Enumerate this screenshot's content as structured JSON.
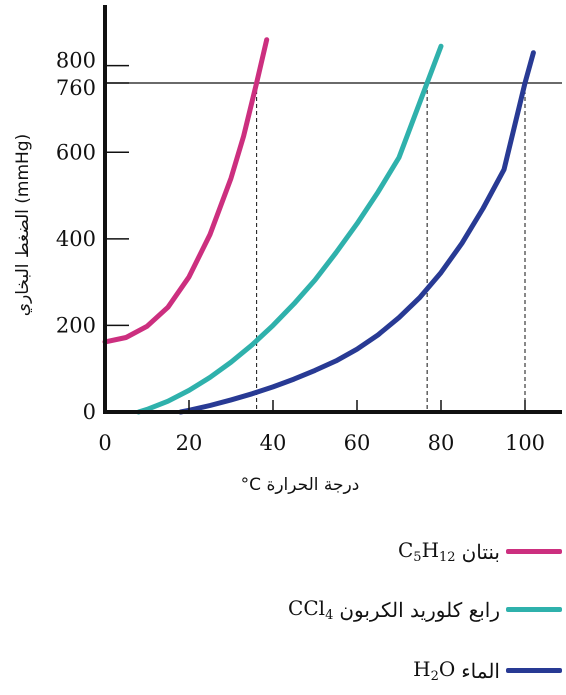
{
  "chart_data": {
    "type": "line",
    "title": "",
    "xlabel": "°C درجة الحرارة",
    "ylabel": "الضغط البخاري (mmHg)",
    "xlim": [
      0,
      105
    ],
    "ylim": [
      0,
      880
    ],
    "x_ticks": [
      0,
      20,
      40,
      60,
      80,
      100
    ],
    "y_ticks": [
      0,
      200,
      400,
      600,
      760,
      800
    ],
    "grid": false,
    "legend_placement": "bottom-right",
    "reference_line": {
      "y": 760
    },
    "series": [
      {
        "name": "بنتان C5H12",
        "color": "#cc2f7f",
        "x": [
          0,
          5,
          10,
          15,
          20,
          25,
          30,
          33,
          36.1,
          38.5
        ],
        "y": [
          162,
          172,
          198,
          242,
          312,
          410,
          540,
          637,
          760,
          860
        ],
        "boiling_point": 36.1
      },
      {
        "name": "رابع كلوريد الكربون CCl4",
        "color": "#2fb1ac",
        "x": [
          8,
          10,
          15,
          20,
          25,
          30,
          35,
          40,
          45,
          50,
          55,
          60,
          65,
          70,
          76.7,
          80
        ],
        "y": [
          0,
          6,
          25,
          50,
          80,
          115,
          155,
          200,
          250,
          305,
          368,
          435,
          508,
          588,
          760,
          845
        ],
        "boiling_point": 76.7
      },
      {
        "name": "الماء H2O",
        "color": "#283a94",
        "x": [
          18,
          20,
          25,
          30,
          35,
          40,
          45,
          50,
          55,
          60,
          65,
          70,
          75,
          80,
          85,
          90,
          95,
          100,
          102
        ],
        "y": [
          0,
          4,
          15,
          28,
          42,
          58,
          76,
          96,
          118,
          145,
          178,
          218,
          265,
          322,
          390,
          470,
          560,
          760,
          830
        ],
        "boiling_point": 100
      }
    ]
  },
  "legend": [
    {
      "label": "بنتان",
      "formula_main": "C",
      "formula_sub1": "5",
      "formula_mid": "H",
      "formula_sub2": "12",
      "formula_end": "",
      "color": "#cc2f7f"
    },
    {
      "label": "رابع كلوريد الكربون",
      "formula_main": "CCl",
      "formula_sub1": "4",
      "formula_mid": "",
      "formula_sub2": "",
      "formula_end": "",
      "color": "#2fb1ac"
    },
    {
      "label": "الماء",
      "formula_main": "H",
      "formula_sub1": "2",
      "formula_mid": "O",
      "formula_sub2": "",
      "formula_end": "",
      "color": "#283a94"
    }
  ]
}
